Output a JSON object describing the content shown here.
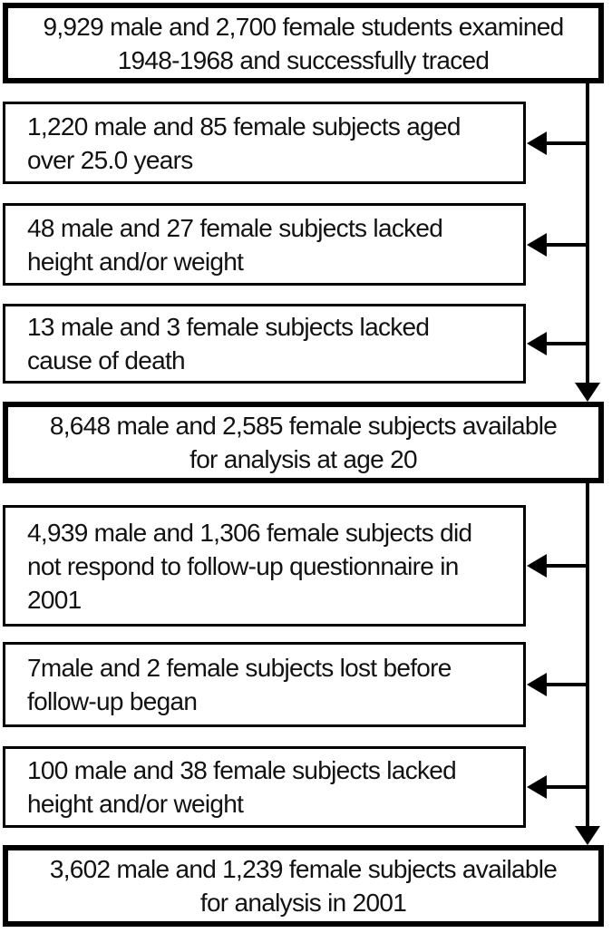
{
  "flowchart": {
    "description": "Study participant flow diagram",
    "colors": {
      "background": "#ffffff",
      "border": "#000000",
      "arrow": "#000000",
      "text": "#121212"
    },
    "boxes": [
      {
        "id": "examined-1948-1968",
        "type": "main",
        "lines": [
          "9,929 male and 2,700 female students examined",
          "1948-1968 and successfully traced"
        ]
      },
      {
        "id": "excluded-aged-over-25",
        "type": "exclusion",
        "lines": [
          "1,220 male and 85 female subjects aged",
          "over 25.0 years"
        ]
      },
      {
        "id": "excluded-lacked-height-weight-baseline",
        "type": "exclusion",
        "lines": [
          "48 male and 27 female subjects lacked",
          "height and/or weight"
        ]
      },
      {
        "id": "excluded-lacked-cause-of-death",
        "type": "exclusion",
        "lines": [
          "13 male and 3 female subjects lacked",
          "cause of death"
        ]
      },
      {
        "id": "available-age-20",
        "type": "main",
        "lines": [
          "8,648 male and 2,585 female subjects available",
          "for analysis at age 20"
        ]
      },
      {
        "id": "no-response-followup-2001",
        "type": "exclusion",
        "lines": [
          "4,939 male and 1,306 female subjects did",
          "not respond to follow-up questionnaire in",
          "2001"
        ]
      },
      {
        "id": "lost-before-followup",
        "type": "exclusion",
        "lines": [
          "7male and 2 female subjects lost before",
          "follow-up began"
        ]
      },
      {
        "id": "excluded-lacked-height-weight-followup",
        "type": "exclusion",
        "lines": [
          "100 male and 38 female subjects lacked",
          "height and/or weight"
        ]
      },
      {
        "id": "available-2001",
        "type": "main",
        "lines": [
          "3,602 male and 1,239 female subjects available",
          "for analysis in 2001"
        ]
      }
    ],
    "edges": [
      {
        "from": "examined-1948-1968",
        "to": "available-age-20",
        "style": "vertical-arrow"
      },
      {
        "from": "examined-1948-1968",
        "to": "excluded-aged-over-25",
        "style": "branch-arrow"
      },
      {
        "from": "examined-1948-1968",
        "to": "excluded-lacked-height-weight-baseline",
        "style": "branch-arrow"
      },
      {
        "from": "examined-1948-1968",
        "to": "excluded-lacked-cause-of-death",
        "style": "branch-arrow"
      },
      {
        "from": "available-age-20",
        "to": "available-2001",
        "style": "vertical-arrow"
      },
      {
        "from": "available-age-20",
        "to": "no-response-followup-2001",
        "style": "branch-arrow"
      },
      {
        "from": "available-age-20",
        "to": "lost-before-followup",
        "style": "branch-arrow"
      },
      {
        "from": "available-age-20",
        "to": "excluded-lacked-height-weight-followup",
        "style": "branch-arrow"
      }
    ]
  }
}
